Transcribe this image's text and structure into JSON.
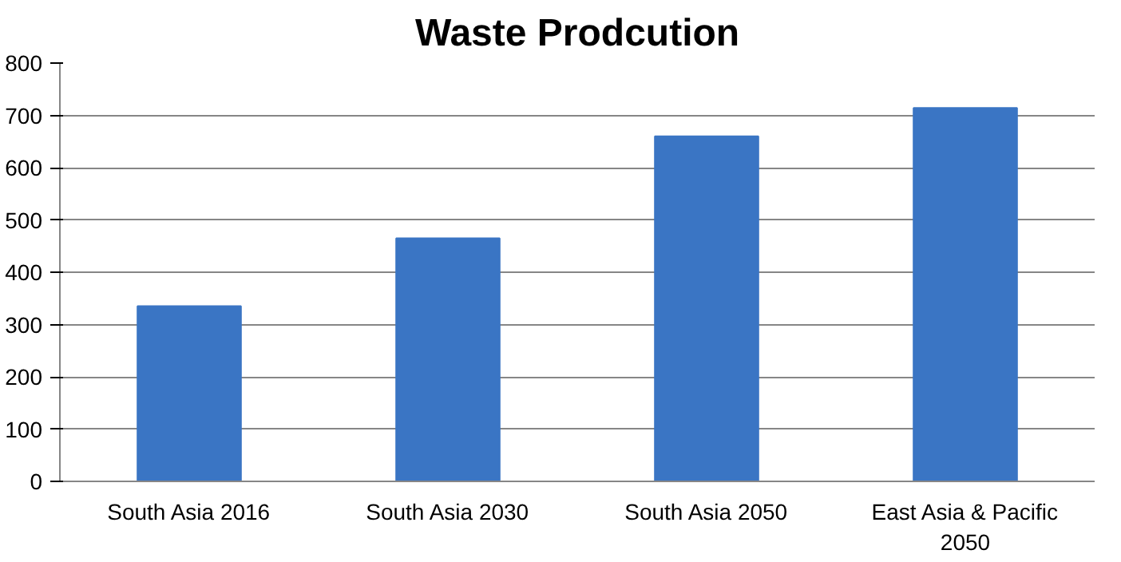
{
  "chart_data": {
    "type": "bar",
    "title": "Waste Prodcution",
    "categories": [
      "South Asia 2016",
      "South Asia 2030",
      "South Asia 2050",
      "East Asia & Pacific 2050"
    ],
    "values": [
      335,
      465,
      660,
      714
    ],
    "color": "#3a75c4",
    "ylim": [
      0,
      800
    ],
    "yticks": [
      0,
      100,
      200,
      300,
      400,
      500,
      600,
      700,
      800
    ],
    "grid": "y"
  }
}
